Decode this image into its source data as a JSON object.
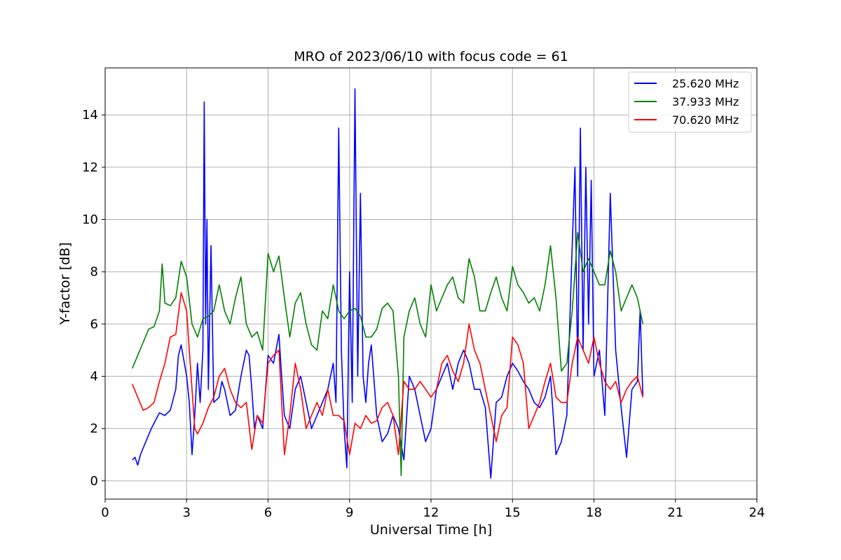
{
  "chart_data": {
    "type": "line",
    "title": "MRO of 2023/06/10 with focus code = 61",
    "xlabel": "Universal Time [h]",
    "ylabel": "Y-factor [dB]",
    "xlim": [
      0,
      24
    ],
    "ylim": [
      -0.7,
      15.8
    ],
    "xticks": [
      0,
      3,
      6,
      9,
      12,
      15,
      18,
      21,
      24
    ],
    "yticks": [
      0,
      2,
      4,
      6,
      8,
      10,
      12,
      14
    ],
    "grid": true,
    "legend": "top-right",
    "series": [
      {
        "name": "25.620 MHz",
        "color": "#0000ff",
        "x": [
          1.0,
          1.1,
          1.2,
          1.3,
          1.5,
          1.7,
          1.9,
          2.0,
          2.2,
          2.4,
          2.6,
          2.7,
          2.8,
          2.9,
          3.0,
          3.1,
          3.2,
          3.3,
          3.4,
          3.5,
          3.6,
          3.65,
          3.7,
          3.75,
          3.8,
          3.9,
          4.0,
          4.2,
          4.3,
          4.4,
          4.6,
          4.8,
          5.0,
          5.2,
          5.3,
          5.4,
          5.5,
          5.6,
          5.8,
          6.0,
          6.2,
          6.4,
          6.5,
          6.6,
          6.8,
          7.0,
          7.2,
          7.4,
          7.6,
          7.8,
          8.0,
          8.2,
          8.4,
          8.5,
          8.6,
          8.7,
          8.8,
          8.9,
          9.0,
          9.1,
          9.2,
          9.3,
          9.4,
          9.5,
          9.6,
          9.7,
          9.8,
          10.0,
          10.2,
          10.4,
          10.6,
          10.8,
          11.0,
          11.2,
          11.4,
          11.6,
          11.8,
          12.0,
          12.2,
          12.4,
          12.6,
          12.8,
          13.0,
          13.2,
          13.4,
          13.6,
          13.8,
          14.0,
          14.2,
          14.4,
          14.6,
          14.8,
          15.0,
          15.2,
          15.4,
          15.6,
          15.8,
          16.0,
          16.2,
          16.4,
          16.6,
          16.8,
          17.0,
          17.2,
          17.3,
          17.4,
          17.5,
          17.6,
          17.7,
          17.8,
          17.9,
          18.0,
          18.2,
          18.4,
          18.6,
          18.8,
          19.0,
          19.2,
          19.4,
          19.6,
          19.7,
          19.8
        ],
        "y": [
          0.8,
          0.9,
          0.6,
          1.0,
          1.5,
          2.0,
          2.4,
          2.6,
          2.5,
          2.7,
          3.5,
          4.8,
          5.2,
          4.6,
          4.0,
          3.0,
          1.0,
          2.5,
          4.5,
          3.0,
          5.0,
          14.5,
          6.0,
          10.0,
          3.5,
          9.0,
          3.0,
          3.2,
          3.8,
          3.5,
          2.5,
          2.7,
          4.0,
          5.0,
          4.8,
          3.5,
          2.0,
          2.5,
          2.0,
          4.8,
          4.5,
          5.6,
          4.0,
          2.5,
          2.0,
          3.5,
          4.0,
          3.0,
          2.0,
          2.5,
          3.0,
          3.5,
          4.5,
          3.0,
          13.5,
          5.0,
          2.0,
          0.5,
          8.0,
          3.0,
          15.0,
          4.0,
          11.0,
          4.0,
          3.0,
          4.5,
          5.2,
          2.5,
          1.5,
          1.8,
          2.5,
          2.0,
          0.8,
          4.0,
          3.5,
          2.5,
          1.5,
          2.0,
          3.5,
          4.0,
          4.5,
          3.5,
          4.5,
          5.0,
          4.5,
          3.5,
          3.5,
          2.8,
          0.1,
          3.0,
          3.2,
          4.0,
          4.5,
          4.2,
          3.8,
          3.5,
          3.0,
          2.8,
          3.2,
          4.0,
          1.0,
          1.5,
          2.5,
          9.0,
          12.0,
          4.0,
          13.5,
          5.0,
          12.0,
          6.0,
          11.5,
          4.0,
          5.0,
          2.5,
          11.0,
          5.0,
          2.8,
          0.9,
          3.5,
          3.8,
          6.5,
          3.2
        ]
      },
      {
        "name": "37.933 MHz",
        "color": "#008000",
        "x": [
          1.0,
          1.2,
          1.4,
          1.6,
          1.8,
          2.0,
          2.1,
          2.2,
          2.4,
          2.6,
          2.8,
          3.0,
          3.2,
          3.4,
          3.6,
          3.8,
          4.0,
          4.2,
          4.4,
          4.6,
          4.8,
          5.0,
          5.2,
          5.4,
          5.6,
          5.8,
          6.0,
          6.2,
          6.4,
          6.6,
          6.8,
          7.0,
          7.2,
          7.4,
          7.6,
          7.8,
          8.0,
          8.2,
          8.4,
          8.6,
          8.8,
          9.0,
          9.2,
          9.4,
          9.6,
          9.8,
          10.0,
          10.2,
          10.4,
          10.6,
          10.8,
          10.9,
          11.0,
          11.2,
          11.4,
          11.6,
          11.8,
          12.0,
          12.2,
          12.4,
          12.6,
          12.8,
          13.0,
          13.2,
          13.4,
          13.6,
          13.8,
          14.0,
          14.2,
          14.4,
          14.6,
          14.8,
          15.0,
          15.2,
          15.4,
          15.6,
          15.8,
          16.0,
          16.2,
          16.4,
          16.6,
          16.8,
          17.0,
          17.2,
          17.4,
          17.6,
          17.8,
          18.0,
          18.2,
          18.4,
          18.6,
          18.8,
          19.0,
          19.2,
          19.4,
          19.6,
          19.8
        ],
        "y": [
          4.3,
          4.8,
          5.3,
          5.8,
          5.9,
          6.5,
          8.3,
          6.8,
          6.7,
          7.0,
          8.4,
          7.8,
          6.0,
          5.5,
          6.2,
          6.3,
          6.5,
          7.5,
          6.5,
          6.0,
          7.0,
          7.8,
          6.0,
          5.5,
          5.7,
          5.0,
          8.7,
          8.0,
          8.6,
          7.0,
          5.5,
          6.8,
          7.2,
          6.0,
          5.2,
          5.0,
          6.5,
          6.2,
          7.5,
          6.5,
          6.2,
          6.5,
          6.6,
          6.3,
          5.5,
          5.5,
          5.8,
          6.6,
          6.8,
          6.5,
          4.0,
          0.2,
          5.5,
          6.5,
          7.0,
          6.0,
          5.5,
          7.5,
          6.5,
          7.0,
          7.5,
          7.8,
          7.0,
          6.8,
          8.5,
          7.8,
          6.5,
          6.5,
          7.2,
          7.8,
          7.0,
          6.5,
          8.2,
          7.5,
          7.2,
          6.8,
          7.0,
          6.5,
          7.5,
          9.0,
          7.0,
          4.2,
          4.5,
          6.5,
          9.5,
          8.0,
          8.5,
          8.0,
          7.5,
          7.5,
          8.8,
          8.0,
          6.5,
          7.0,
          7.5,
          7.0,
          6.0
        ]
      },
      {
        "name": "70.620 MHz",
        "color": "#ff0000",
        "x": [
          1.0,
          1.2,
          1.4,
          1.6,
          1.8,
          2.0,
          2.2,
          2.4,
          2.6,
          2.8,
          3.0,
          3.1,
          3.2,
          3.3,
          3.4,
          3.6,
          3.8,
          4.0,
          4.2,
          4.4,
          4.6,
          4.8,
          5.0,
          5.2,
          5.4,
          5.6,
          5.8,
          6.0,
          6.2,
          6.4,
          6.6,
          6.8,
          7.0,
          7.2,
          7.4,
          7.6,
          7.8,
          8.0,
          8.2,
          8.4,
          8.6,
          8.8,
          9.0,
          9.2,
          9.4,
          9.6,
          9.8,
          10.0,
          10.2,
          10.4,
          10.6,
          10.8,
          11.0,
          11.2,
          11.4,
          11.6,
          11.8,
          12.0,
          12.2,
          12.4,
          12.6,
          12.8,
          13.0,
          13.2,
          13.4,
          13.6,
          13.8,
          14.0,
          14.2,
          14.4,
          14.6,
          14.8,
          15.0,
          15.2,
          15.4,
          15.6,
          15.8,
          16.0,
          16.2,
          16.4,
          16.6,
          16.8,
          17.0,
          17.2,
          17.4,
          17.6,
          17.8,
          18.0,
          18.2,
          18.4,
          18.6,
          18.8,
          19.0,
          19.2,
          19.4,
          19.6,
          19.8
        ],
        "y": [
          3.7,
          3.2,
          2.7,
          2.8,
          3.0,
          3.8,
          4.5,
          5.5,
          5.6,
          7.2,
          6.5,
          5.0,
          3.5,
          2.0,
          1.8,
          2.2,
          2.8,
          3.2,
          4.0,
          4.3,
          3.5,
          3.0,
          2.8,
          3.0,
          1.2,
          2.5,
          2.2,
          4.5,
          4.8,
          5.0,
          1.0,
          2.5,
          4.5,
          3.5,
          2.0,
          2.5,
          3.0,
          2.5,
          3.5,
          2.5,
          2.5,
          2.3,
          1.0,
          2.2,
          2.0,
          2.5,
          2.2,
          2.3,
          2.8,
          3.0,
          2.5,
          1.0,
          3.8,
          3.5,
          3.5,
          3.8,
          3.5,
          3.2,
          3.5,
          4.5,
          4.8,
          4.2,
          3.8,
          4.5,
          6.0,
          5.0,
          4.5,
          3.5,
          2.5,
          1.5,
          2.5,
          2.8,
          5.5,
          5.2,
          4.5,
          2.0,
          2.5,
          3.0,
          3.8,
          4.5,
          3.2,
          3.0,
          3.0,
          4.5,
          5.5,
          5.0,
          4.5,
          5.5,
          4.5,
          3.8,
          3.5,
          3.8,
          3.0,
          3.5,
          3.8,
          4.0,
          3.2
        ]
      }
    ]
  }
}
